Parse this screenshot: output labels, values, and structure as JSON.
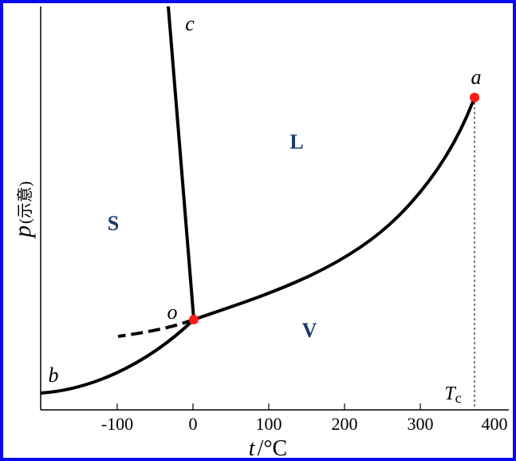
{
  "diagram": {
    "x_axis": {
      "symbol": "t",
      "unit": "/°C",
      "tick_labels": [
        "-100",
        "0",
        "100",
        "200",
        "300",
        "400"
      ],
      "critical_label": "T",
      "critical_subscript": "c"
    },
    "y_axis": {
      "symbol": "p",
      "note": "(示意)"
    },
    "regions": {
      "solid": "S",
      "liquid": "L",
      "vapor": "V"
    },
    "points": {
      "a": "a",
      "b": "b",
      "c": "c",
      "o": "o"
    },
    "colors": {
      "frame": "#0a0af0",
      "region_text": "#1a3a6a",
      "point_marker": "#ff1a1a"
    }
  }
}
